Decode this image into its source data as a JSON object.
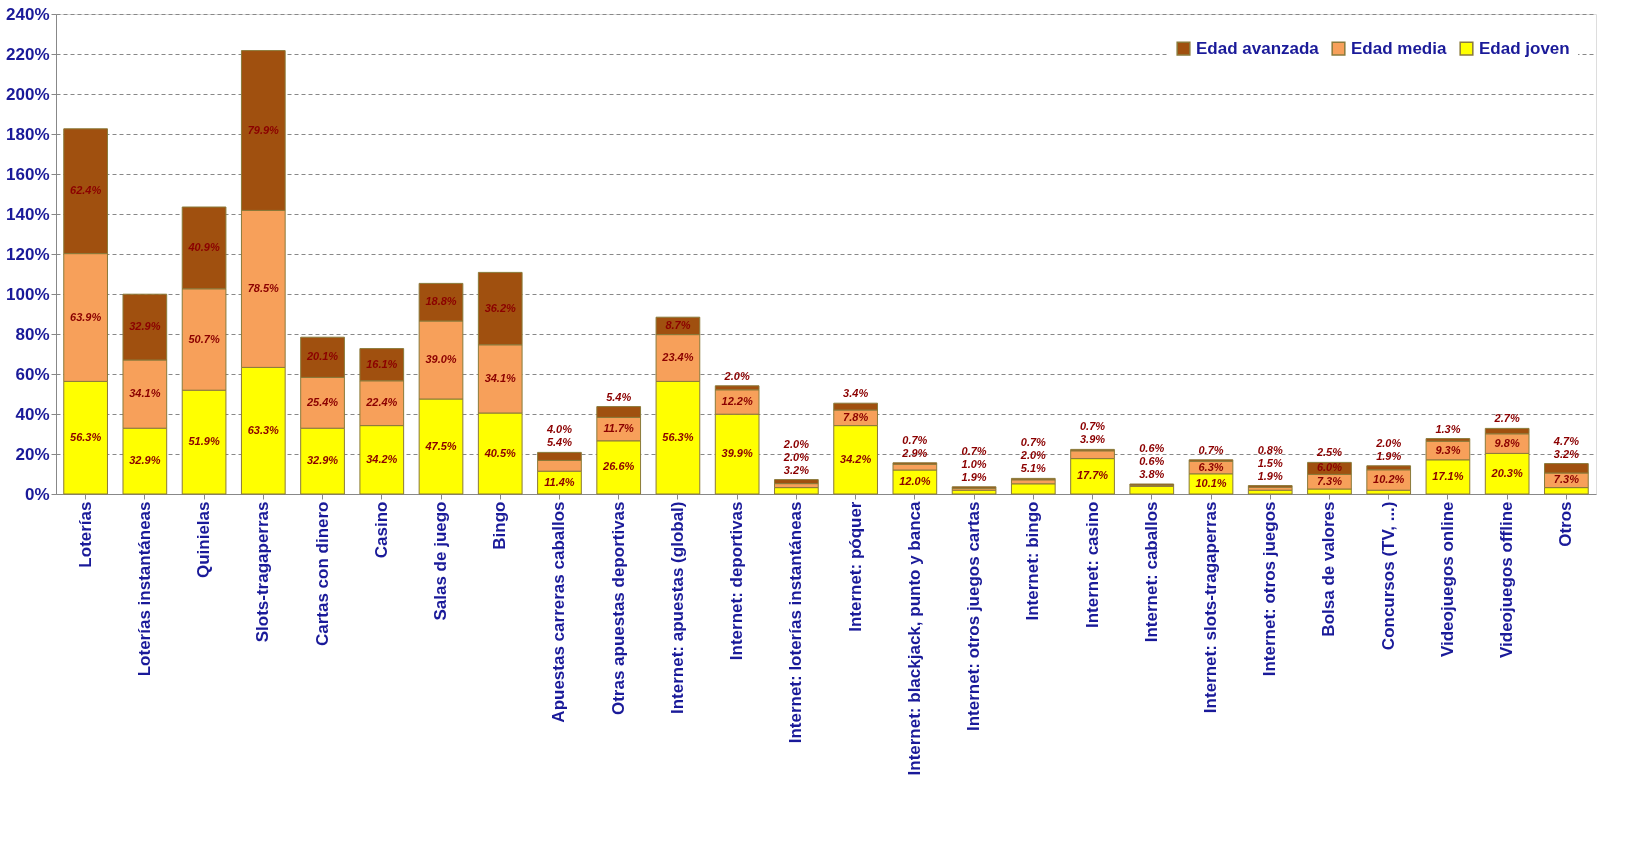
{
  "chart_data": {
    "type": "bar",
    "stacked": true,
    "categories": [
      "Loterías",
      "Loterías instantáneas",
      "Quinielas",
      "Slots-tragaperras",
      "Cartas con dinero",
      "Casino",
      "Salas de juego",
      "Bingo",
      "Apuestas carreras caballos",
      "Otras apuestas deportivas",
      "Internet: apuestas (global)",
      "Internet:  deportivas",
      "Internet: loterías instantáneas",
      "Internet: póquer",
      "Internet: blackjack, punto y banca",
      "Internet: otros juegos cartas",
      "Internet: bingo",
      "Internet: casino",
      "Internet: caballos",
      "Internet: slots-tragaperras",
      "Internet: otros juegos",
      "Bolsa de valores",
      "Concursos (TV, ...)",
      "Videojuegos online",
      "Videojuegos offline",
      "Otros"
    ],
    "series": [
      {
        "name": "Edad joven",
        "color": "#ffff00",
        "values": [
          56.3,
          32.9,
          51.9,
          63.3,
          32.9,
          34.2,
          47.5,
          40.5,
          11.4,
          26.6,
          56.3,
          39.9,
          3.2,
          34.2,
          12.0,
          1.9,
          5.1,
          17.7,
          3.8,
          10.1,
          1.9,
          2.5,
          1.9,
          17.1,
          20.3,
          3.2
        ],
        "value_labels": [
          "56.3%",
          "32.9%",
          "51.9%",
          "63.3%",
          "32.9%",
          "34.2%",
          "47.5%",
          "40.5%",
          "11.4%",
          "26.6%",
          "56.3%",
          "39.9%",
          "3.2%",
          "34.2%",
          "12.0%",
          "1.9%",
          "5.1%",
          "17.7%",
          "3.8%",
          "10.1%",
          "1.9%",
          "2.5%",
          "1.9%",
          "17.1%",
          "20.3%",
          "3.2%"
        ]
      },
      {
        "name": "Edad media",
        "color": "#f7a05a",
        "values": [
          63.9,
          34.1,
          50.7,
          78.5,
          25.4,
          22.4,
          39.0,
          34.1,
          5.4,
          11.7,
          23.4,
          12.2,
          2.0,
          7.8,
          2.9,
          1.0,
          2.0,
          3.9,
          0.6,
          6.3,
          1.5,
          7.3,
          10.2,
          9.3,
          9.8,
          7.3
        ],
        "value_labels": [
          "63.9%",
          "34.1%",
          "50.7%",
          "78.5%",
          "25.4%",
          "22.4%",
          "39.0%",
          "34.1%",
          "5.4%",
          "11.7%",
          "23.4%",
          "12.2%",
          "2.0%",
          "7.8%",
          "2.9%",
          "1.0%",
          "2.0%",
          "3.9%",
          "0.6%",
          "6.3%",
          "1.5%",
          "7.3%",
          "10.2%",
          "9.3%",
          "9.8%",
          "7.3%"
        ]
      },
      {
        "name": "Edad avanzada",
        "color": "#a0500f",
        "values": [
          62.4,
          32.9,
          40.9,
          79.9,
          20.1,
          16.1,
          18.8,
          36.2,
          4.0,
          5.4,
          8.7,
          2.0,
          2.0,
          3.4,
          0.7,
          0.7,
          0.7,
          0.7,
          0.6,
          0.7,
          0.8,
          6.0,
          2.0,
          1.3,
          2.7,
          4.7
        ],
        "value_labels": [
          "62.4%",
          "32.9%",
          "40.9%",
          "79.9%",
          "20.1%",
          "16.1%",
          "18.8%",
          "36.2%",
          "4.0%",
          "5.4%",
          "8.7%",
          "2.0%",
          "2.0%",
          "3.4%",
          "0.7%",
          "0.7%",
          "0.7%",
          "0.7%",
          "0.6%",
          "0.7%",
          "0.8%",
          "6.0%",
          "2.0%",
          "1.3%",
          "2.7%",
          "4.7%"
        ]
      }
    ],
    "ylim": [
      0,
      240
    ],
    "yticks": [
      {
        "value": 0,
        "label": "0%"
      },
      {
        "value": 20,
        "label": "20%"
      },
      {
        "value": 40,
        "label": "40%"
      },
      {
        "value": 60,
        "label": "60%"
      },
      {
        "value": 80,
        "label": "80%"
      },
      {
        "value": 100,
        "label": "100%"
      },
      {
        "value": 120,
        "label": "120%"
      },
      {
        "value": 140,
        "label": "140%"
      },
      {
        "value": 160,
        "label": "160%"
      },
      {
        "value": 180,
        "label": "180%"
      },
      {
        "value": 200,
        "label": "200%"
      },
      {
        "value": 220,
        "label": "220%"
      },
      {
        "value": 240,
        "label": "240%"
      }
    ],
    "grid": "y",
    "legend": "top right"
  }
}
